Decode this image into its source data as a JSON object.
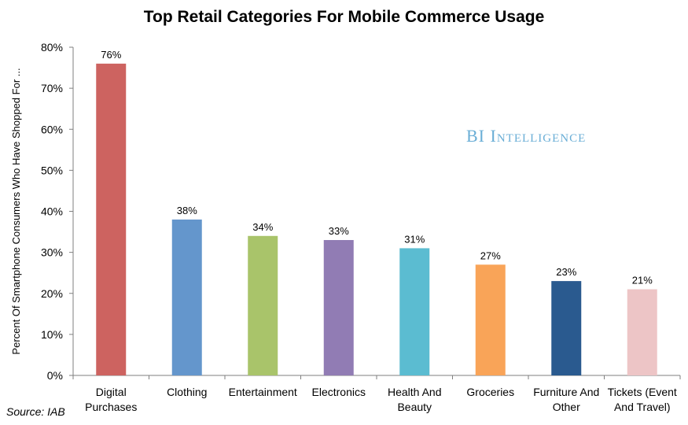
{
  "chart_data": {
    "type": "bar",
    "title": "Top Retail Categories For Mobile Commerce Usage",
    "xlabel": "",
    "ylabel": "Percent Of Smartphone Consumers Who Have Shopped For ...",
    "ylim": [
      0,
      80
    ],
    "yticks": [
      0,
      10,
      20,
      30,
      40,
      50,
      60,
      70,
      80
    ],
    "ytick_labels": [
      "0%",
      "10%",
      "20%",
      "30%",
      "40%",
      "50%",
      "60%",
      "70%",
      "80%"
    ],
    "categories": [
      [
        "Digital",
        "Purchases"
      ],
      [
        "Clothing"
      ],
      [
        "Entertainment"
      ],
      [
        "Electronics"
      ],
      [
        "Health And",
        "Beauty"
      ],
      [
        "Groceries"
      ],
      [
        "Furniture And",
        "Other"
      ],
      [
        "Tickets (Event",
        "And Travel)"
      ]
    ],
    "values": [
      76,
      38,
      34,
      33,
      31,
      27,
      23,
      21
    ],
    "value_labels": [
      "76%",
      "38%",
      "34%",
      "33%",
      "31%",
      "27%",
      "23%",
      "21%"
    ],
    "colors": [
      "#cd6360",
      "#6496cc",
      "#a9c46a",
      "#917cb4",
      "#5bbcd1",
      "#f9a458",
      "#2a5a8f",
      "#edc5c6"
    ],
    "legend": "none",
    "grid": false
  },
  "watermark": {
    "prefix": "BI ",
    "word": "Intelligence"
  },
  "source": "Source: IAB"
}
